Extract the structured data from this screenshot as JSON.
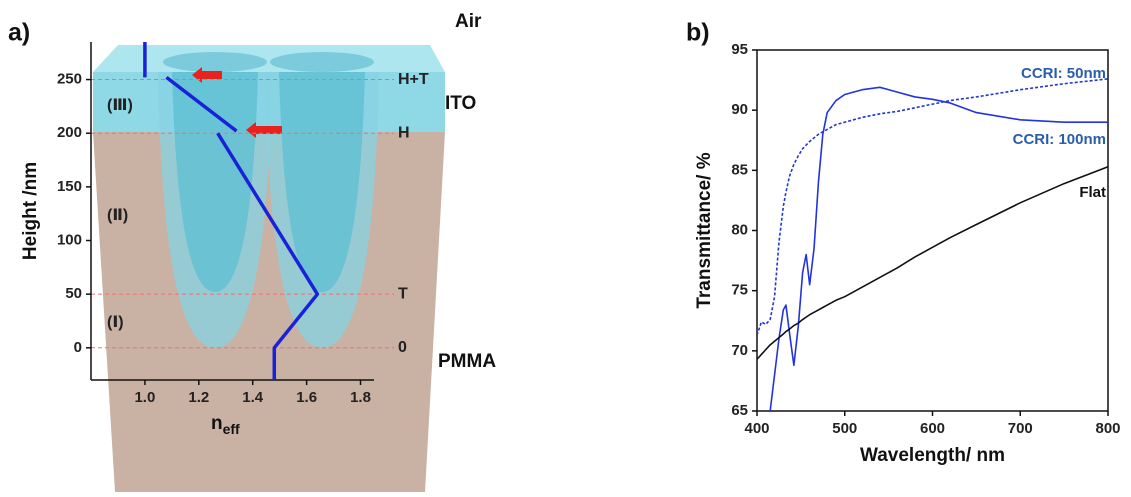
{
  "panel_labels": [
    "a)",
    "b)"
  ],
  "chart_data": [
    {
      "type": "line",
      "ylabel": "Height /nm",
      "xlabel": "n",
      "xlabel_sub": "eff",
      "layers": [
        "Air",
        "ITO",
        "PMMA"
      ],
      "regions": [
        "(Ⅲ)",
        "(Ⅱ)",
        "(Ⅰ)"
      ],
      "hlines": [
        {
          "value": 250,
          "label": "H+T"
        },
        {
          "value": 200,
          "label": "H"
        },
        {
          "value": 50,
          "label": "T"
        },
        {
          "value": 0,
          "label": "0"
        }
      ],
      "hline_color": "#f07070",
      "x": [
        1.0,
        1.0,
        null,
        1.08,
        1.34,
        null,
        1.27,
        1.64,
        1.48,
        1.48
      ],
      "series": [
        {
          "color": "#1a22d8",
          "values": [
            285,
            252,
            null,
            252,
            202,
            null,
            200,
            50,
            0,
            -30
          ]
        }
      ],
      "xlim": [
        0.8,
        1.85
      ],
      "ylim": [
        -30,
        285
      ],
      "xticks": [
        {
          "value": 1.0,
          "label": "1.0"
        },
        1.2,
        1.4,
        1.6,
        1.8
      ],
      "yticks": [
        0,
        50,
        100,
        150,
        200,
        250
      ],
      "frame": false
    },
    {
      "type": "line",
      "xlabel": "Wavelength/ nm",
      "ylabel": "Transmittance/ %",
      "x": [
        400,
        405,
        410,
        415,
        420,
        425,
        430,
        433,
        437,
        442,
        447,
        452,
        456,
        460,
        465,
        470,
        475,
        480,
        490,
        500,
        520,
        540,
        560,
        580,
        600,
        620,
        650,
        700,
        750,
        800
      ],
      "series": [
        {
          "name": "CCRI: 50nm",
          "color": "#2233e0",
          "dash": true,
          "values": [
            71.3,
            72.4,
            72.2,
            72.6,
            74.5,
            79,
            82,
            83.2,
            84.5,
            85.5,
            86.2,
            86.8,
            87.1,
            87.4,
            87.7,
            88.0,
            88.2,
            88.4,
            88.8,
            89.0,
            89.4,
            89.7,
            89.9,
            90.2,
            90.5,
            90.8,
            91.1,
            91.7,
            92.2,
            92.6
          ]
        },
        {
          "name": "CCRI: 100nm",
          "color": "#2233e0",
          "dash": false,
          "values": [
            null,
            null,
            null,
            65,
            68,
            71,
            73.4,
            73.8,
            71.5,
            68.8,
            72,
            76.5,
            78,
            75.5,
            78.5,
            84,
            88,
            89.8,
            90.8,
            91.3,
            91.7,
            91.9,
            91.5,
            91.1,
            90.9,
            90.6,
            89.8,
            89.2,
            89.0,
            89.0
          ]
        },
        {
          "name": "Flat",
          "color": "#111111",
          "dash": false,
          "values": [
            69.3,
            69.7,
            70.1,
            70.5,
            70.8,
            71.1,
            71.4,
            71.6,
            71.8,
            72.1,
            72.3,
            72.6,
            72.8,
            73.0,
            73.2,
            73.4,
            73.6,
            73.8,
            74.2,
            74.5,
            75.3,
            76.1,
            76.9,
            77.8,
            78.6,
            79.4,
            80.5,
            82.3,
            83.9,
            85.3
          ]
        }
      ],
      "label_colors": [
        "#2a5ea8",
        "#2a5ea8",
        "#111111"
      ],
      "xlim": [
        400,
        800
      ],
      "ylim": [
        65,
        95
      ],
      "xticks": [
        400,
        500,
        600,
        700,
        800
      ],
      "yticks": [
        65,
        70,
        75,
        80,
        85,
        90,
        95
      ],
      "frame": true
    }
  ]
}
